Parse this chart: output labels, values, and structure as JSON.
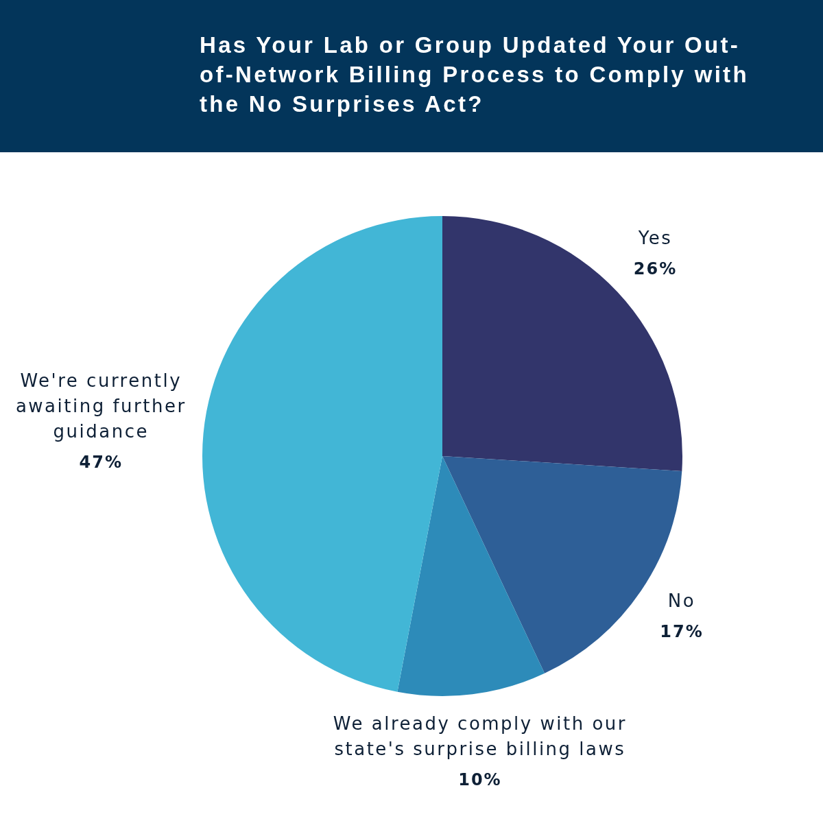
{
  "chart_data": {
    "type": "pie",
    "title": "Has Your Lab or Group Updated Your Out-of-Network Billing Process to Comply with the No Surprises Act?",
    "categories": [
      "Yes",
      "No",
      "We already comply with our state's surprise billing laws",
      "We're currently awaiting further guidance"
    ],
    "values": [
      26,
      17,
      10,
      47
    ],
    "colors": [
      "#32356b",
      "#2e5f97",
      "#2d8bb9",
      "#42b6d6"
    ],
    "value_labels": [
      "26%",
      "17%",
      "10%",
      "47%"
    ]
  }
}
